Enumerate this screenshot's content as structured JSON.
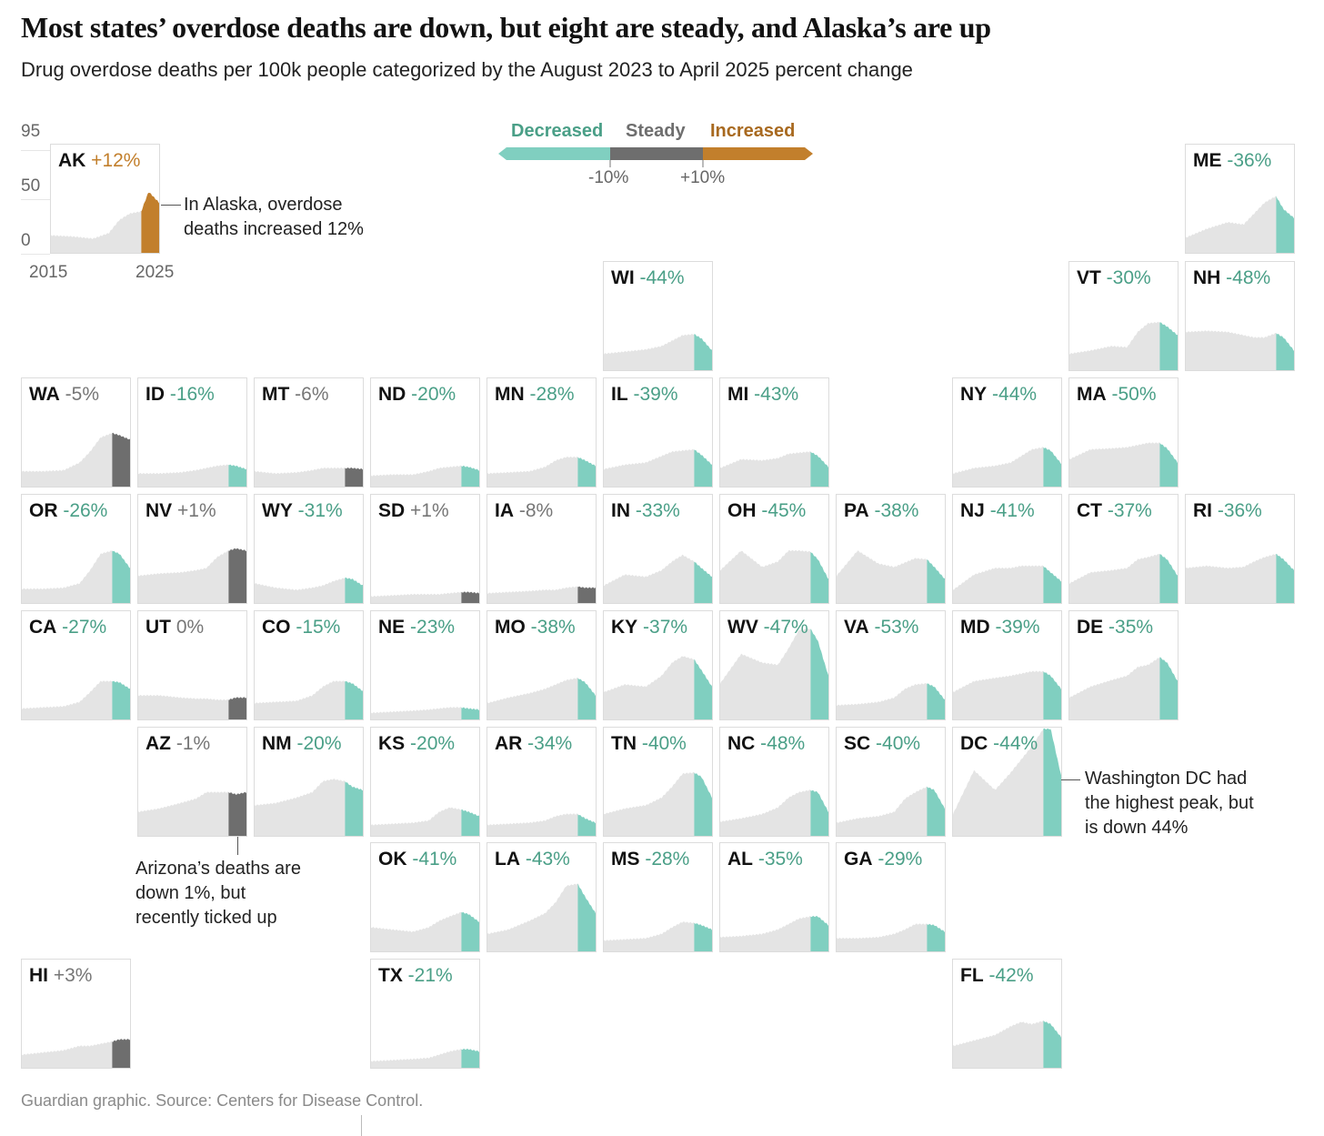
{
  "title": "Most states’ overdose deaths are down, but eight are steady, and Alaska’s are up",
  "subtitle": "Drug overdose deaths per 100k people categorized by the August 2023 to April 2025 percent change",
  "legend": {
    "decreased": "Decreased",
    "steady": "Steady",
    "increased": "Increased",
    "tick_low": "-10%",
    "tick_high": "+10%"
  },
  "colors": {
    "decreased": "#80cfc0",
    "steady": "#6e6e6e",
    "increased": "#c27f2c",
    "history": "#e4e4e4",
    "decreased_text": "#4a9f87",
    "steady_text": "#767676",
    "increased_text": "#c27f2c"
  },
  "axis": {
    "y_ticks": [
      "95",
      "50",
      "0"
    ],
    "x_ticks": [
      "2015",
      "2025"
    ]
  },
  "annotations": {
    "ak": "In Alaska, overdose deaths increased 12%",
    "az": "Arizona’s deaths are down 1%, but recently ticked up",
    "dc": "Washington DC had the highest peak, but is down 44%"
  },
  "footer": "Guardian graphic. Source: Centers for Disease Control.",
  "chart_data": {
    "type": "area",
    "title": "Most states’ overdose deaths are down, but eight are steady, and Alaska’s are up",
    "ylabel": "Drug overdose deaths per 100k",
    "ylim": [
      0,
      95
    ],
    "xlim": [
      2015,
      2025.3
    ],
    "highlight_start": 2023.6,
    "years": [
      2015,
      2017,
      2019,
      2020.5,
      2021.5,
      2022.5,
      2023.6,
      2024.3,
      2025.3
    ],
    "states": [
      {
        "code": "AK",
        "change": "+12%",
        "cat": "increased",
        "values": [
          16,
          15,
          13,
          18,
          30,
          36,
          38,
          56,
          46
        ]
      },
      {
        "code": "ME",
        "change": "-36%",
        "cat": "decreased",
        "values": [
          14,
          22,
          28,
          26,
          36,
          46,
          52,
          40,
          32
        ]
      },
      {
        "code": "WI",
        "change": "-44%",
        "cat": "decreased",
        "values": [
          15,
          17,
          19,
          22,
          27,
          32,
          33,
          29,
          18
        ]
      },
      {
        "code": "VT",
        "change": "-30%",
        "cat": "decreased",
        "values": [
          15,
          18,
          22,
          21,
          35,
          43,
          44,
          40,
          32
        ]
      },
      {
        "code": "NH",
        "change": "-48%",
        "cat": "decreased",
        "values": [
          35,
          36,
          35,
          32,
          30,
          30,
          34,
          30,
          18
        ]
      },
      {
        "code": "WA",
        "change": "-5%",
        "cat": "steady",
        "values": [
          14,
          14,
          15,
          22,
          32,
          45,
          49,
          47,
          43
        ]
      },
      {
        "code": "ID",
        "change": "-16%",
        "cat": "decreased",
        "values": [
          12,
          12,
          13,
          15,
          17,
          19,
          20,
          19,
          16
        ]
      },
      {
        "code": "MT",
        "change": "-6%",
        "cat": "steady",
        "values": [
          14,
          12,
          13,
          15,
          17,
          17,
          17,
          17,
          16
        ]
      },
      {
        "code": "ND",
        "change": "-20%",
        "cat": "decreased",
        "values": [
          10,
          11,
          11,
          14,
          17,
          18,
          19,
          18,
          15
        ]
      },
      {
        "code": "MN",
        "change": "-28%",
        "cat": "decreased",
        "values": [
          12,
          13,
          14,
          18,
          24,
          27,
          27,
          24,
          19
        ]
      },
      {
        "code": "IL",
        "change": "-39%",
        "cat": "decreased",
        "values": [
          16,
          20,
          22,
          28,
          32,
          33,
          34,
          29,
          20
        ]
      },
      {
        "code": "MI",
        "change": "-43%",
        "cat": "decreased",
        "values": [
          17,
          25,
          24,
          26,
          30,
          31,
          32,
          28,
          18
        ]
      },
      {
        "code": "NY",
        "change": "-44%",
        "cat": "decreased",
        "values": [
          12,
          17,
          19,
          22,
          28,
          34,
          36,
          33,
          21
        ]
      },
      {
        "code": "MA",
        "change": "-50%",
        "cat": "decreased",
        "values": [
          25,
          34,
          35,
          36,
          38,
          40,
          40,
          35,
          22
        ]
      },
      {
        "code": "OR",
        "change": "-26%",
        "cat": "decreased",
        "values": [
          13,
          13,
          14,
          18,
          30,
          45,
          48,
          45,
          32
        ]
      },
      {
        "code": "NV",
        "change": "+1%",
        "cat": "steady",
        "values": [
          25,
          27,
          28,
          30,
          32,
          42,
          48,
          50,
          48
        ]
      },
      {
        "code": "WY",
        "change": "-31%",
        "cat": "decreased",
        "values": [
          18,
          14,
          12,
          14,
          16,
          20,
          23,
          22,
          16
        ]
      },
      {
        "code": "SD",
        "change": "+1%",
        "cat": "steady",
        "values": [
          6,
          7,
          8,
          8,
          8,
          9,
          10,
          10,
          9
        ]
      },
      {
        "code": "IA",
        "change": "-8%",
        "cat": "steady",
        "values": [
          9,
          10,
          11,
          12,
          12,
          14,
          15,
          14,
          14
        ]
      },
      {
        "code": "IN",
        "change": "-33%",
        "cat": "decreased",
        "values": [
          16,
          26,
          24,
          30,
          38,
          44,
          38,
          32,
          24
        ]
      },
      {
        "code": "OH",
        "change": "-45%",
        "cat": "decreased",
        "values": [
          30,
          48,
          33,
          38,
          48,
          48,
          47,
          40,
          22
        ]
      },
      {
        "code": "PA",
        "change": "-38%",
        "cat": "decreased",
        "values": [
          25,
          48,
          36,
          33,
          37,
          41,
          40,
          33,
          22
        ]
      },
      {
        "code": "NJ",
        "change": "-41%",
        "cat": "decreased",
        "values": [
          12,
          26,
          32,
          32,
          34,
          34,
          34,
          28,
          20
        ]
      },
      {
        "code": "CT",
        "change": "-37%",
        "cat": "decreased",
        "values": [
          18,
          28,
          30,
          32,
          40,
          42,
          45,
          40,
          25
        ]
      },
      {
        "code": "RI",
        "change": "-36%",
        "cat": "decreased",
        "values": [
          32,
          34,
          32,
          33,
          38,
          42,
          45,
          40,
          30
        ]
      },
      {
        "code": "CA",
        "change": "-27%",
        "cat": "decreased",
        "values": [
          10,
          11,
          12,
          16,
          25,
          35,
          35,
          34,
          28
        ]
      },
      {
        "code": "UT",
        "change": "0%",
        "cat": "steady",
        "values": [
          22,
          22,
          20,
          19,
          19,
          18,
          18,
          20,
          20
        ]
      },
      {
        "code": "CO",
        "change": "-15%",
        "cat": "decreased",
        "values": [
          15,
          16,
          17,
          22,
          30,
          35,
          35,
          33,
          26
        ]
      },
      {
        "code": "NE",
        "change": "-23%",
        "cat": "decreased",
        "values": [
          6,
          7,
          8,
          9,
          10,
          11,
          11,
          10,
          9
        ]
      },
      {
        "code": "MO",
        "change": "-38%",
        "cat": "decreased",
        "values": [
          15,
          20,
          24,
          28,
          32,
          36,
          38,
          34,
          22
        ]
      },
      {
        "code": "KY",
        "change": "-37%",
        "cat": "decreased",
        "values": [
          25,
          32,
          30,
          40,
          52,
          58,
          55,
          45,
          30
        ]
      },
      {
        "code": "WV",
        "change": "-47%",
        "cat": "decreased",
        "values": [
          33,
          60,
          52,
          50,
          65,
          82,
          83,
          72,
          40
        ]
      },
      {
        "code": "VA",
        "change": "-53%",
        "cat": "decreased",
        "values": [
          13,
          14,
          16,
          20,
          28,
          32,
          33,
          30,
          18
        ]
      },
      {
        "code": "MD",
        "change": "-39%",
        "cat": "decreased",
        "values": [
          25,
          35,
          38,
          40,
          42,
          44,
          44,
          40,
          28
        ]
      },
      {
        "code": "DE",
        "change": "-35%",
        "cat": "decreased",
        "values": [
          20,
          30,
          36,
          40,
          48,
          50,
          57,
          52,
          35
        ]
      },
      {
        "code": "AZ",
        "change": "-1%",
        "cat": "steady",
        "values": [
          22,
          25,
          30,
          34,
          40,
          40,
          40,
          38,
          40
        ]
      },
      {
        "code": "NM",
        "change": "-20%",
        "cat": "decreased",
        "values": [
          28,
          30,
          35,
          40,
          50,
          52,
          50,
          45,
          42
        ]
      },
      {
        "code": "KS",
        "change": "-20%",
        "cat": "decreased",
        "values": [
          10,
          11,
          12,
          14,
          22,
          26,
          24,
          22,
          18
        ]
      },
      {
        "code": "AR",
        "change": "-34%",
        "cat": "decreased",
        "values": [
          10,
          11,
          12,
          14,
          18,
          20,
          20,
          16,
          12
        ]
      },
      {
        "code": "TN",
        "change": "-40%",
        "cat": "decreased",
        "values": [
          20,
          25,
          28,
          35,
          45,
          57,
          58,
          54,
          35
        ]
      },
      {
        "code": "NC",
        "change": "-48%",
        "cat": "decreased",
        "values": [
          13,
          16,
          20,
          26,
          35,
          40,
          42,
          40,
          22
        ]
      },
      {
        "code": "SC",
        "change": "-40%",
        "cat": "decreased",
        "values": [
          12,
          16,
          18,
          22,
          34,
          40,
          45,
          42,
          25
        ]
      },
      {
        "code": "DC",
        "change": "-44%",
        "cat": "decreased",
        "values": [
          20,
          60,
          42,
          58,
          70,
          82,
          98,
          98,
          55
        ]
      },
      {
        "code": "OK",
        "change": "-41%",
        "cat": "decreased",
        "values": [
          22,
          20,
          18,
          22,
          28,
          32,
          36,
          34,
          27
        ]
      },
      {
        "code": "LA",
        "change": "-43%",
        "cat": "decreased",
        "values": [
          16,
          20,
          28,
          35,
          45,
          60,
          62,
          50,
          35
        ]
      },
      {
        "code": "MS",
        "change": "-28%",
        "cat": "decreased",
        "values": [
          10,
          11,
          12,
          16,
          22,
          27,
          26,
          24,
          20
        ]
      },
      {
        "code": "AL",
        "change": "-35%",
        "cat": "decreased",
        "values": [
          13,
          14,
          16,
          20,
          25,
          30,
          32,
          32,
          24
        ]
      },
      {
        "code": "GA",
        "change": "-29%",
        "cat": "decreased",
        "values": [
          12,
          12,
          13,
          16,
          20,
          25,
          25,
          24,
          18
        ]
      },
      {
        "code": "HI",
        "change": "+3%",
        "cat": "steady",
        "values": [
          12,
          14,
          16,
          20,
          20,
          22,
          24,
          26,
          26
        ]
      },
      {
        "code": "TX",
        "change": "-21%",
        "cat": "decreased",
        "values": [
          6,
          7,
          8,
          9,
          12,
          15,
          17,
          17,
          15
        ]
      },
      {
        "code": "FL",
        "change": "-42%",
        "cat": "decreased",
        "values": [
          20,
          25,
          30,
          38,
          42,
          40,
          43,
          40,
          28
        ]
      }
    ]
  }
}
